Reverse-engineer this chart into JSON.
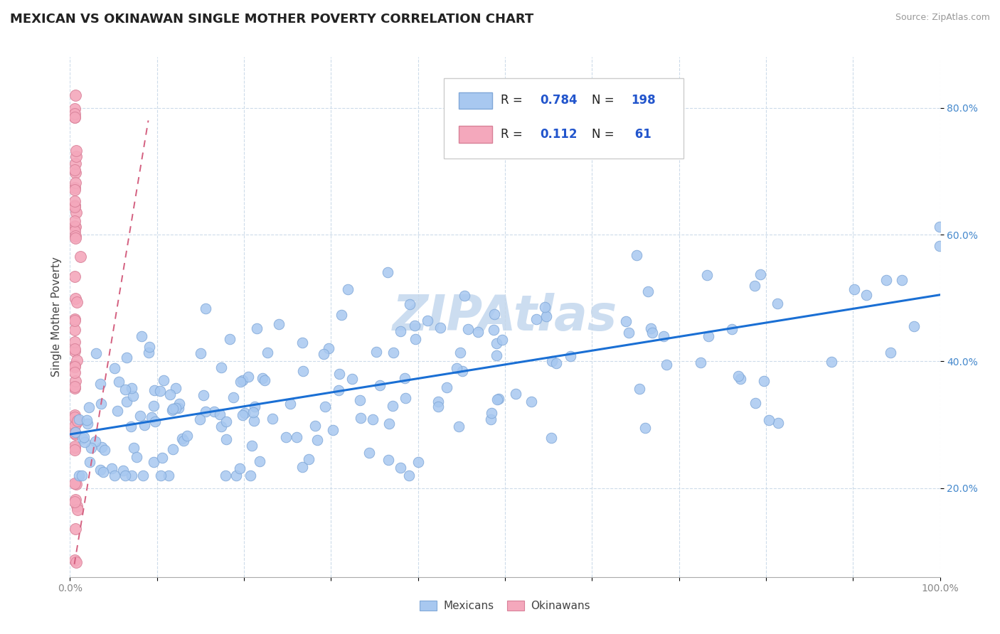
{
  "title": "MEXICAN VS OKINAWAN SINGLE MOTHER POVERTY CORRELATION CHART",
  "source_text": "Source: ZipAtlas.com",
  "ylabel": "Single Mother Poverty",
  "watermark": "ZIPAtlas",
  "xlim": [
    0.0,
    1.0
  ],
  "ylim": [
    0.06,
    0.88
  ],
  "ytick_positions": [
    0.2,
    0.4,
    0.6,
    0.8
  ],
  "ytick_labels": [
    "20.0%",
    "40.0%",
    "60.0%",
    "80.0%"
  ],
  "blue_color": "#a8c8f0",
  "pink_color": "#f4a8bc",
  "trend_blue": "#1a6fd4",
  "trend_pink": "#d46080",
  "blue_edge": "#80a8d8",
  "pink_edge": "#d88098",
  "tick_color_y": "#4488cc",
  "tick_color_x": "#888888",
  "title_fontsize": 13,
  "axis_label_fontsize": 11,
  "tick_fontsize": 10,
  "legend_fontsize": 12,
  "watermark_fontsize": 50,
  "watermark_color": "#ccddf0",
  "background_color": "#ffffff",
  "grid_color": "#c8d8e8",
  "blue_trend_x0": 0.0,
  "blue_trend_y0": 0.285,
  "blue_trend_x1": 1.0,
  "blue_trend_y1": 0.505,
  "pink_trend_x0": 0.005,
  "pink_trend_y0": 0.08,
  "pink_trend_x1": 0.09,
  "pink_trend_y1": 0.78,
  "seed_mex": 12,
  "seed_oki": 99,
  "N_mex": 198,
  "N_oki": 61
}
